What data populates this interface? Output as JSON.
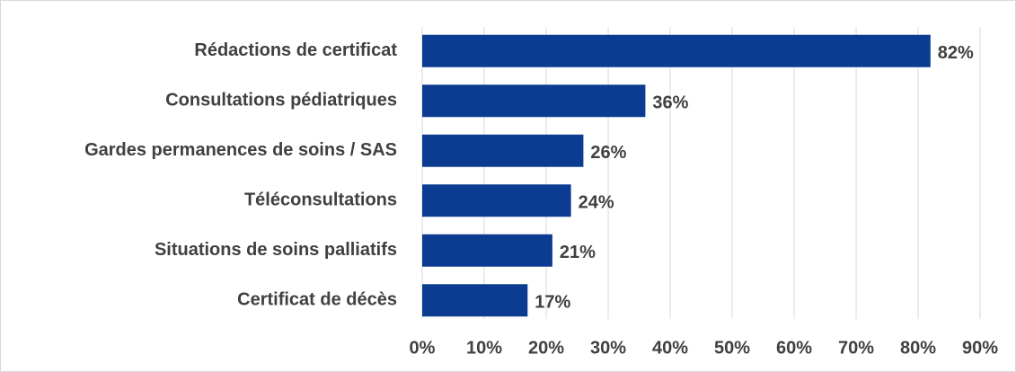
{
  "chart_data": {
    "type": "barh",
    "categories": [
      "Rédactions de certificat",
      "Consultations pédiatriques",
      "Gardes permanences de soins / SAS",
      "Téléconsultations",
      "Situations de soins palliatifs",
      "Certificat de décès"
    ],
    "values": [
      82,
      36,
      26,
      24,
      21,
      17
    ],
    "value_labels": [
      "82%",
      "36%",
      "26%",
      "24%",
      "21%",
      "17%"
    ],
    "color": "#0b3c91",
    "xlim": [
      0,
      90
    ],
    "xticks": [
      {
        "value": 0,
        "label": "0%"
      },
      {
        "value": 10,
        "label": "10%"
      },
      {
        "value": 20,
        "label": "20%"
      },
      {
        "value": 30,
        "label": "30%"
      },
      {
        "value": 40,
        "label": "40%"
      },
      {
        "value": 50,
        "label": "50%"
      },
      {
        "value": 60,
        "label": "60%"
      },
      {
        "value": 70,
        "label": "70%"
      },
      {
        "value": 80,
        "label": "80%"
      },
      {
        "value": 90,
        "label": "90%"
      }
    ],
    "grid": true
  }
}
